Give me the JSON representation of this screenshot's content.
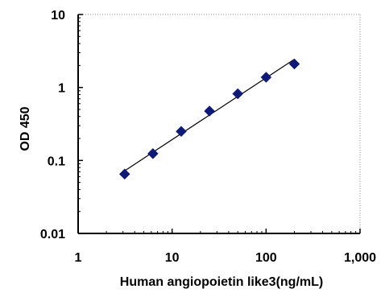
{
  "chart_data": {
    "type": "scatter",
    "title": "",
    "xlabel": "Human angiopoietin like3(ng/mL)",
    "ylabel": "OD 450",
    "x_scale": "log",
    "y_scale": "log",
    "xlim": [
      1,
      1000
    ],
    "ylim": [
      0.01,
      10
    ],
    "x_ticks": [
      1,
      10,
      100,
      1000
    ],
    "x_tick_labels": [
      "1",
      "10",
      "100",
      "1,000"
    ],
    "y_ticks": [
      0.01,
      0.1,
      1,
      10
    ],
    "y_tick_labels": [
      "0.01",
      "0.1",
      "1",
      "10"
    ],
    "grid": false,
    "legend": "none",
    "series": [
      {
        "marker": "diamond",
        "color": "#0d1a7a",
        "x": [
          3.125,
          6.25,
          12.5,
          25,
          50,
          100,
          200
        ],
        "y": [
          0.065,
          0.124,
          0.25,
          0.475,
          0.82,
          1.38,
          2.1
        ]
      }
    ],
    "fit_line": {
      "type": "power",
      "color": "#000000",
      "x_range": [
        3.125,
        200
      ]
    }
  }
}
